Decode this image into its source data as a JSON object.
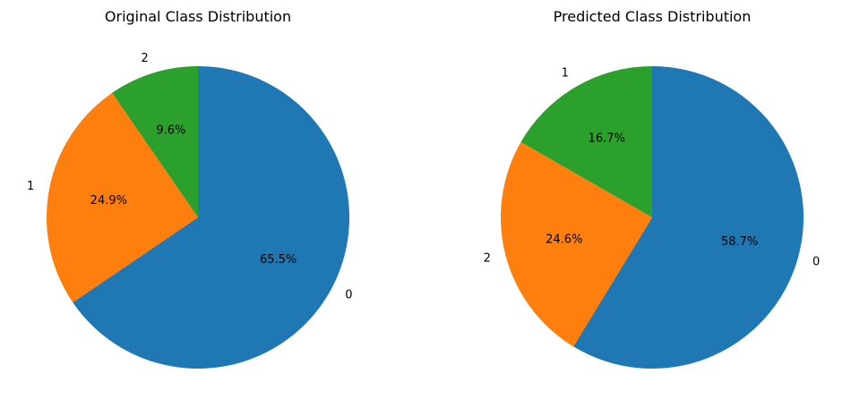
{
  "chart_data": [
    {
      "type": "pie",
      "title": "Original Class Distribution",
      "start_angle_deg": 90,
      "direction": "clockwise",
      "slices": [
        {
          "label": "0",
          "value": 65.5,
          "pct_label": "65.5%",
          "color": "#1f77b4"
        },
        {
          "label": "1",
          "value": 24.9,
          "pct_label": "24.9%",
          "color": "#ff7f0e"
        },
        {
          "label": "2",
          "value": 9.6,
          "pct_label": "9.6%",
          "color": "#2ca02c"
        }
      ]
    },
    {
      "type": "pie",
      "title": "Predicted Class Distribution",
      "start_angle_deg": 90,
      "direction": "clockwise",
      "slices": [
        {
          "label": "0",
          "value": 58.7,
          "pct_label": "58.7%",
          "color": "#1f77b4"
        },
        {
          "label": "2",
          "value": 24.6,
          "pct_label": "24.6%",
          "color": "#ff7f0e"
        },
        {
          "label": "1",
          "value": 16.7,
          "pct_label": "16.7%",
          "color": "#2ca02c"
        }
      ]
    }
  ]
}
